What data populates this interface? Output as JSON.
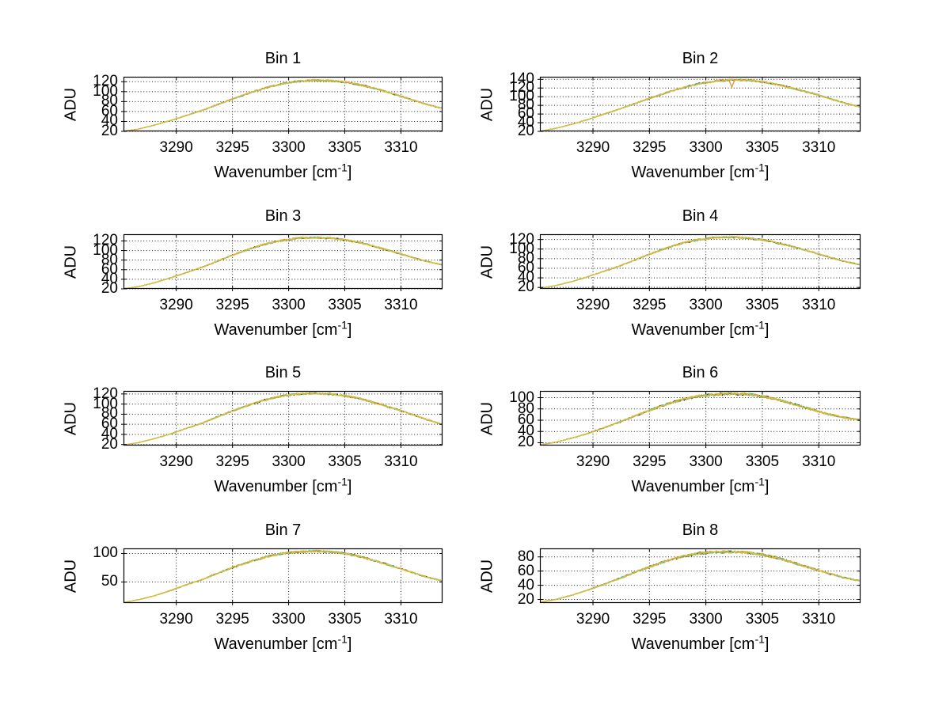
{
  "figure": {
    "background": "#ffffff",
    "grid_color": "#1a1a1a",
    "axis_color": "#000000",
    "text_color": "#000000",
    "xlabel": {
      "pre": "Wavenumber [cm",
      "sup": "-1",
      "post": "]"
    },
    "ylabel": "ADU",
    "series_colors": [
      "#151515",
      "#43b649",
      "#2fbfbf",
      "#e0962a",
      "#ddbe35"
    ],
    "spike_color": "#e0962a"
  },
  "chart_data": [
    {
      "type": "line",
      "title": "Bin 1",
      "ylabel": "ADU",
      "xlim": [
        3285.3,
        3313.7
      ],
      "ylim": [
        20,
        130
      ],
      "xticks": [
        3290,
        3295,
        3300,
        3305,
        3310
      ],
      "yticks": [
        20,
        40,
        60,
        80,
        100,
        120
      ],
      "x": [
        3285.3,
        3286.7,
        3288.1,
        3289.5,
        3290.9,
        3292.4,
        3293.8,
        3295.2,
        3296.6,
        3298.0,
        3299.4,
        3300.9,
        3302.3,
        3303.7,
        3305.1,
        3306.5,
        3307.9,
        3309.4,
        3310.8,
        3312.2,
        3313.7
      ],
      "values": [
        20,
        25,
        33,
        42,
        52,
        63,
        75,
        87,
        98,
        108,
        116,
        121,
        123,
        122,
        119,
        113,
        105,
        95,
        85,
        75,
        66
      ],
      "noise_amplitude": 2.0
    },
    {
      "type": "line",
      "title": "Bin 2",
      "ylabel": "ADU",
      "xlim": [
        3285.3,
        3313.7
      ],
      "ylim": [
        20,
        146
      ],
      "xticks": [
        3290,
        3295,
        3300,
        3305,
        3310
      ],
      "yticks": [
        20,
        40,
        60,
        80,
        100,
        120,
        140
      ],
      "x": [
        3285.3,
        3286.7,
        3288.1,
        3289.5,
        3290.9,
        3292.4,
        3293.8,
        3295.2,
        3296.6,
        3298.0,
        3299.4,
        3300.9,
        3302.3,
        3303.7,
        3305.1,
        3306.5,
        3307.9,
        3309.4,
        3310.8,
        3312.2,
        3313.7
      ],
      "values": [
        20,
        27,
        36,
        47,
        59,
        72,
        85,
        98,
        110,
        121,
        130,
        136,
        139,
        138,
        134,
        127,
        118,
        108,
        97,
        86,
        76
      ],
      "noise_amplitude": 2.2,
      "spike": {
        "x": 3302.3,
        "y": 122
      }
    },
    {
      "type": "line",
      "title": "Bin 3",
      "ylabel": "ADU",
      "xlim": [
        3285.3,
        3313.7
      ],
      "ylim": [
        20,
        134
      ],
      "xticks": [
        3290,
        3295,
        3300,
        3305,
        3310
      ],
      "yticks": [
        20,
        40,
        60,
        80,
        100,
        120
      ],
      "x": [
        3285.3,
        3286.7,
        3288.1,
        3289.5,
        3290.9,
        3292.4,
        3293.8,
        3295.2,
        3296.6,
        3298.0,
        3299.4,
        3300.9,
        3302.3,
        3303.7,
        3305.1,
        3306.5,
        3307.9,
        3309.4,
        3310.8,
        3312.2,
        3313.7
      ],
      "values": [
        20,
        25,
        33,
        43,
        54,
        66,
        79,
        92,
        104,
        114,
        121,
        126,
        127,
        126,
        122,
        116,
        107,
        97,
        87,
        78,
        70
      ],
      "noise_amplitude": 2.0
    },
    {
      "type": "line",
      "title": "Bin 4",
      "ylabel": "ADU",
      "xlim": [
        3285.3,
        3313.7
      ],
      "ylim": [
        17,
        131
      ],
      "xticks": [
        3290,
        3295,
        3300,
        3305,
        3310
      ],
      "yticks": [
        20,
        40,
        60,
        80,
        100,
        120
      ],
      "x": [
        3285.3,
        3286.7,
        3288.1,
        3289.5,
        3290.9,
        3292.4,
        3293.8,
        3295.2,
        3296.6,
        3298.0,
        3299.4,
        3300.9,
        3302.3,
        3303.7,
        3305.1,
        3306.5,
        3307.9,
        3309.4,
        3310.8,
        3312.2,
        3313.7
      ],
      "values": [
        18,
        24,
        32,
        42,
        53,
        65,
        78,
        91,
        103,
        113,
        120,
        124,
        125,
        123,
        119,
        112,
        104,
        94,
        84,
        75,
        67
      ],
      "noise_amplitude": 2.0
    },
    {
      "type": "line",
      "title": "Bin 5",
      "ylabel": "ADU",
      "xlim": [
        3285.3,
        3313.7
      ],
      "ylim": [
        18,
        126
      ],
      "xticks": [
        3290,
        3295,
        3300,
        3305,
        3310
      ],
      "yticks": [
        20,
        40,
        60,
        80,
        100,
        120
      ],
      "x": [
        3285.3,
        3286.7,
        3288.1,
        3289.5,
        3290.9,
        3292.4,
        3293.8,
        3295.2,
        3296.6,
        3298.0,
        3299.4,
        3300.9,
        3302.3,
        3303.7,
        3305.1,
        3306.5,
        3307.9,
        3309.4,
        3310.8,
        3312.2,
        3313.7
      ],
      "values": [
        19,
        24,
        32,
        41,
        52,
        63,
        76,
        88,
        99,
        109,
        116,
        120,
        121,
        120,
        116,
        110,
        101,
        91,
        81,
        70,
        60
      ],
      "noise_amplitude": 2.0
    },
    {
      "type": "line",
      "title": "Bin 6",
      "ylabel": "ADU",
      "xlim": [
        3285.3,
        3313.7
      ],
      "ylim": [
        15,
        112
      ],
      "xticks": [
        3290,
        3295,
        3300,
        3305,
        3310
      ],
      "yticks": [
        20,
        40,
        60,
        80,
        100
      ],
      "x": [
        3285.3,
        3286.7,
        3288.1,
        3289.5,
        3290.9,
        3292.4,
        3293.8,
        3295.2,
        3296.6,
        3298.0,
        3299.4,
        3300.9,
        3302.3,
        3303.7,
        3305.1,
        3306.5,
        3307.9,
        3309.4,
        3310.8,
        3312.2,
        3313.7
      ],
      "values": [
        16,
        21,
        28,
        36,
        46,
        57,
        68,
        79,
        89,
        97,
        103,
        106,
        107,
        106,
        102,
        96,
        88,
        79,
        71,
        65,
        60
      ],
      "noise_amplitude": 2.5
    },
    {
      "type": "line",
      "title": "Bin 7",
      "ylabel": "ADU",
      "xlim": [
        3285.3,
        3313.7
      ],
      "ylim": [
        13,
        109
      ],
      "xticks": [
        3290,
        3295,
        3300,
        3305,
        3310
      ],
      "yticks": [
        50,
        100
      ],
      "x": [
        3285.3,
        3286.7,
        3288.1,
        3289.5,
        3290.9,
        3292.4,
        3293.8,
        3295.2,
        3296.6,
        3298.0,
        3299.4,
        3300.9,
        3302.3,
        3303.7,
        3305.1,
        3306.5,
        3307.9,
        3309.4,
        3310.8,
        3312.2,
        3313.7
      ],
      "values": [
        14,
        19,
        26,
        35,
        45,
        55,
        66,
        77,
        86,
        94,
        100,
        103,
        104,
        103,
        100,
        94,
        86,
        77,
        68,
        59,
        52
      ],
      "noise_amplitude": 2.0
    },
    {
      "type": "line",
      "title": "Bin 8",
      "ylabel": "ADU",
      "xlim": [
        3285.3,
        3313.7
      ],
      "ylim": [
        15,
        92
      ],
      "xticks": [
        3290,
        3295,
        3300,
        3305,
        3310
      ],
      "yticks": [
        20,
        40,
        60,
        80
      ],
      "x": [
        3285.3,
        3286.7,
        3288.1,
        3289.5,
        3290.9,
        3292.4,
        3293.8,
        3295.2,
        3296.6,
        3298.0,
        3299.4,
        3300.9,
        3302.3,
        3303.7,
        3305.1,
        3306.5,
        3307.9,
        3309.4,
        3310.8,
        3312.2,
        3313.7
      ],
      "values": [
        16,
        20,
        26,
        33,
        41,
        50,
        59,
        67,
        75,
        81,
        85,
        87,
        87,
        86,
        83,
        78,
        71,
        64,
        57,
        51,
        46
      ],
      "noise_amplitude": 2.0
    }
  ]
}
